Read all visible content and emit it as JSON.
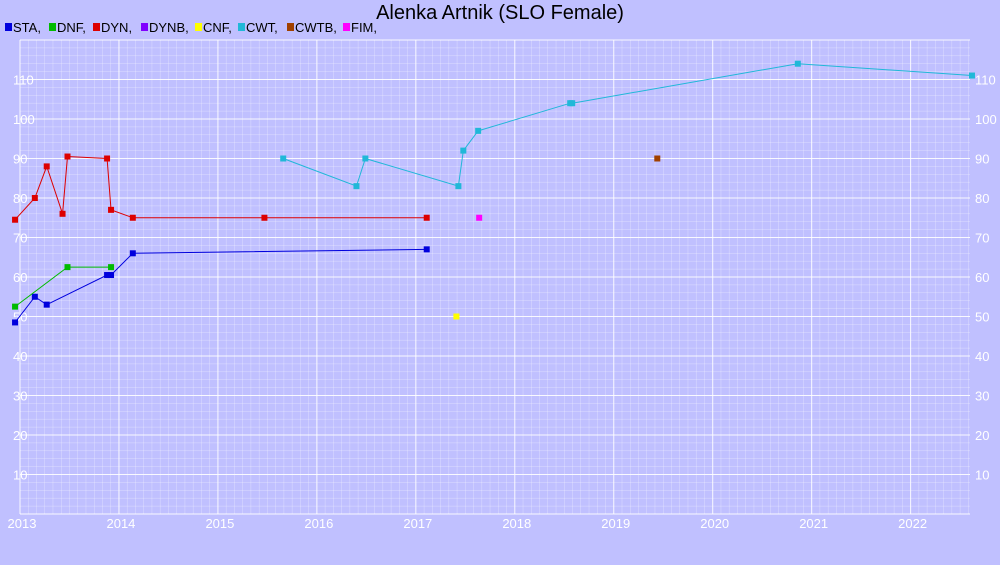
{
  "chart_data": {
    "type": "line",
    "title": "Alenka Artnik (SLO Female)",
    "xlabel": "",
    "ylabel": "",
    "xlim": [
      2013.0,
      2022.6
    ],
    "ylim": [
      0,
      120
    ],
    "grid": true,
    "legend_position": "top-left",
    "x_ticks": [
      "2013",
      "2014",
      "2015",
      "2016",
      "2017",
      "2018",
      "2019",
      "2020",
      "2021",
      "2022"
    ],
    "y_ticks": [
      "10",
      "20",
      "30",
      "40",
      "50",
      "60",
      "70",
      "80",
      "90",
      "100",
      "110"
    ],
    "background": "#c0c0ff",
    "grid_color": "#ffffff",
    "series": [
      {
        "name": "STA,",
        "color": "#0000dd",
        "x": [
          2012.95,
          2013.15,
          2013.27,
          2013.88,
          2013.92,
          2014.14,
          2017.11
        ],
        "y": [
          48.5,
          55,
          53,
          60.5,
          60.5,
          66,
          67
        ]
      },
      {
        "name": "DNF,",
        "color": "#00bb00",
        "x": [
          2012.95,
          2013.48,
          2013.92
        ],
        "y": [
          52.5,
          62.5,
          62.5
        ]
      },
      {
        "name": "DYN,",
        "color": "#dd0000",
        "x": [
          2012.95,
          2013.15,
          2013.27,
          2013.43,
          2013.48,
          2013.88,
          2013.92,
          2014.14,
          2015.47,
          2017.11
        ],
        "y": [
          74.5,
          80,
          88,
          76,
          90.5,
          90,
          77,
          75,
          75,
          75
        ]
      },
      {
        "name": "DYNB,",
        "color": "#8000ff",
        "x": [],
        "y": []
      },
      {
        "name": "CNF,",
        "color": "#ffff00",
        "x": [
          2017.41
        ],
        "y": [
          50
        ]
      },
      {
        "name": "CWT,",
        "color": "#20b8d8",
        "x": [
          2015.66,
          2016.4,
          2016.49,
          2017.43,
          2017.48,
          2017.63,
          2018.56,
          2018.58,
          2020.86,
          2022.62
        ],
        "y": [
          90,
          83,
          90,
          83,
          92,
          97,
          104,
          104,
          114,
          111
        ]
      },
      {
        "name": "CWTB,",
        "color": "#a04000",
        "x": [
          2019.44
        ],
        "y": [
          90
        ]
      },
      {
        "name": "FIM,",
        "color": "#ff00ff",
        "x": [
          2017.64
        ],
        "y": [
          75
        ]
      }
    ]
  }
}
